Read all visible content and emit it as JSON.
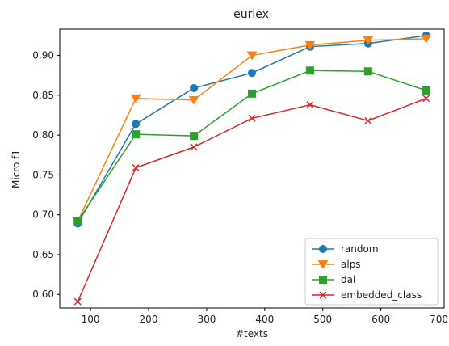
{
  "chart_data": {
    "type": "line",
    "title": "eurlex",
    "xlabel": "#texts",
    "ylabel": "Micro f1",
    "x": [
      78,
      178,
      278,
      378,
      478,
      578,
      678
    ],
    "xlim": [
      47,
      709
    ],
    "ylim": [
      0.583,
      0.933
    ],
    "xticks": [
      100,
      200,
      300,
      400,
      500,
      600,
      700
    ],
    "yticks": [
      0.6,
      0.65,
      0.7,
      0.75,
      0.8,
      0.85,
      0.9
    ],
    "ytick_labels": [
      "0.60",
      "0.65",
      "0.70",
      "0.75",
      "0.80",
      "0.85",
      "0.90"
    ],
    "grid": false,
    "legend_position": "lower-right",
    "series": [
      {
        "name": "random",
        "color": "#1f77b4",
        "marker": "circle",
        "values": [
          0.689,
          0.814,
          0.859,
          0.878,
          0.911,
          0.915,
          0.925
        ]
      },
      {
        "name": "alps",
        "color": "#ff7f0e",
        "marker": "triangle-down",
        "values": [
          0.692,
          0.846,
          0.844,
          0.9,
          0.913,
          0.919,
          0.921
        ]
      },
      {
        "name": "dal",
        "color": "#2ca02c",
        "marker": "square",
        "values": [
          0.692,
          0.801,
          0.799,
          0.852,
          0.881,
          0.88,
          0.856
        ]
      },
      {
        "name": "embedded_class",
        "color": "#d62728",
        "marker": "x",
        "values": [
          0.591,
          0.759,
          0.785,
          0.821,
          0.838,
          0.818,
          0.846
        ]
      }
    ]
  }
}
